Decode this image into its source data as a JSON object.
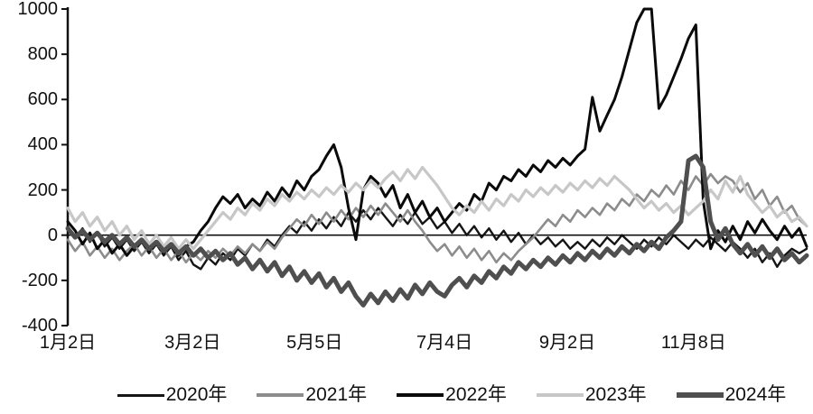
{
  "chart_data": {
    "type": "line",
    "title": "",
    "xlabel": "",
    "ylabel": "",
    "ylim": [
      -400,
      1000
    ],
    "grid": false,
    "zero_line": true,
    "legend_position": "bottom",
    "yticks": [
      "1000",
      "800",
      "600",
      "400",
      "200",
      "0",
      "-200",
      "-400"
    ],
    "ytick_values": [
      1000,
      800,
      600,
      400,
      200,
      0,
      -200,
      -400
    ],
    "xticklabels": [
      {
        "label": "1月2日",
        "pos": 0.0
      },
      {
        "label": "3月2日",
        "pos": 0.169
      },
      {
        "label": "5月5日",
        "pos": 0.334
      },
      {
        "label": "7月4日",
        "pos": 0.51
      },
      {
        "label": "9月2日",
        "pos": 0.676
      },
      {
        "label": "11月8日",
        "pos": 0.847
      }
    ],
    "axis_color": "#111111",
    "series": [
      {
        "name": "2020年",
        "color": "#151515",
        "width": 2.4,
        "values": [
          40,
          -10,
          30,
          -30,
          10,
          -50,
          -10,
          -60,
          -20,
          -70,
          -30,
          -80,
          -40,
          -90,
          -50,
          -110,
          -70,
          -130,
          -150,
          -100,
          -130,
          -80,
          -110,
          -60,
          -90,
          -40,
          -70,
          -20,
          -50,
          0,
          40,
          10,
          60,
          20,
          70,
          30,
          80,
          40,
          100,
          60,
          110,
          70,
          120,
          80,
          40,
          90,
          50,
          100,
          50,
          80,
          30,
          60,
          10,
          50,
          0,
          40,
          -10,
          30,
          -20,
          20,
          -30,
          10,
          -40,
          0,
          -40,
          -10,
          -50,
          -20,
          -60,
          -30,
          -60,
          -20,
          -50,
          -10,
          -40,
          0,
          -30,
          -60,
          -20,
          -50,
          -10,
          -40,
          0,
          -30,
          -60,
          -20,
          -50,
          -10,
          -40,
          -70,
          -30,
          -60,
          -100,
          -60,
          -120,
          -80,
          -140,
          -90,
          -60,
          -80,
          -60
        ]
      },
      {
        "name": "2021年",
        "color": "#8c8c8c",
        "width": 2.6,
        "values": [
          -20,
          -70,
          -30,
          -90,
          -50,
          -100,
          -60,
          -110,
          -70,
          -40,
          -90,
          -50,
          -100,
          -60,
          -110,
          -70,
          -120,
          -80,
          -110,
          -70,
          -100,
          -60,
          -90,
          -50,
          -80,
          -40,
          -70,
          -30,
          -60,
          -10,
          30,
          70,
          40,
          90,
          50,
          100,
          60,
          110,
          70,
          120,
          80,
          130,
          90,
          140,
          100,
          60,
          110,
          60,
          20,
          -30,
          -70,
          -40,
          -90,
          -50,
          -100,
          -60,
          -110,
          -70,
          -120,
          -80,
          -110,
          -70,
          -40,
          -10,
          30,
          70,
          40,
          90,
          60,
          110,
          80,
          120,
          90,
          140,
          110,
          160,
          130,
          180,
          150,
          200,
          170,
          220,
          180,
          240,
          200,
          260,
          220,
          270,
          230,
          260,
          240,
          190,
          230,
          160,
          200,
          130,
          170,
          100,
          130,
          70,
          40
        ]
      },
      {
        "name": "2022年",
        "color": "#0a0a0a",
        "width": 3,
        "values": [
          60,
          20,
          -40,
          10,
          -60,
          -20,
          -80,
          -40,
          -90,
          -50,
          -20,
          -70,
          -30,
          -80,
          -40,
          -90,
          -50,
          -30,
          20,
          60,
          120,
          170,
          140,
          180,
          120,
          160,
          130,
          190,
          150,
          210,
          170,
          240,
          200,
          260,
          290,
          350,
          400,
          300,
          120,
          -20,
          200,
          260,
          230,
          170,
          220,
          120,
          180,
          100,
          150,
          80,
          120,
          60,
          100,
          140,
          110,
          180,
          150,
          230,
          200,
          260,
          240,
          290,
          260,
          310,
          280,
          330,
          300,
          340,
          310,
          350,
          380,
          610,
          460,
          530,
          600,
          700,
          820,
          940,
          1000,
          1000,
          560,
          620,
          700,
          780,
          870,
          930,
          150,
          -60,
          20,
          -30,
          40,
          -20,
          60,
          10,
          70,
          20,
          -20,
          40,
          -10,
          30,
          -50
        ]
      },
      {
        "name": "2023年",
        "color": "#c7c7c7",
        "width": 3.2,
        "values": [
          120,
          60,
          100,
          40,
          80,
          20,
          60,
          0,
          40,
          -20,
          20,
          -40,
          0,
          -50,
          -10,
          -60,
          -20,
          -60,
          -20,
          20,
          60,
          100,
          70,
          120,
          90,
          140,
          110,
          160,
          130,
          180,
          150,
          190,
          160,
          200,
          170,
          210,
          180,
          220,
          190,
          230,
          200,
          240,
          210,
          250,
          280,
          240,
          290,
          250,
          300,
          260,
          220,
          170,
          120,
          90,
          130,
          100,
          150,
          110,
          160,
          130,
          180,
          150,
          200,
          170,
          210,
          180,
          220,
          190,
          230,
          200,
          240,
          210,
          250,
          220,
          260,
          230,
          200,
          160,
          120,
          150,
          110,
          140,
          100,
          130,
          90,
          120,
          150,
          200,
          160,
          240,
          190,
          260,
          180,
          140,
          100,
          130,
          80,
          110,
          60,
          80,
          40
        ]
      },
      {
        "name": "2024年",
        "color": "#4f4f4f",
        "width": 5,
        "values": [
          30,
          -10,
          20,
          -20,
          10,
          -30,
          0,
          -40,
          -10,
          -50,
          -20,
          -60,
          -30,
          -70,
          -40,
          -80,
          -50,
          -90,
          -60,
          -100,
          -70,
          -110,
          -80,
          -130,
          -100,
          -150,
          -110,
          -160,
          -120,
          -180,
          -140,
          -200,
          -160,
          -210,
          -170,
          -230,
          -190,
          -250,
          -210,
          -270,
          -310,
          -260,
          -300,
          -250,
          -290,
          -240,
          -280,
          -220,
          -260,
          -210,
          -250,
          -270,
          -220,
          -190,
          -230,
          -180,
          -210,
          -160,
          -190,
          -140,
          -170,
          -120,
          -150,
          -110,
          -140,
          -100,
          -130,
          -90,
          -120,
          -80,
          -110,
          -70,
          -100,
          -60,
          -90,
          -50,
          -80,
          -40,
          -70,
          -30,
          -60,
          -10,
          20,
          60,
          330,
          350,
          300,
          60,
          -20,
          30,
          -40,
          -80,
          -40,
          -90,
          -50,
          -100,
          -60,
          -110,
          -80,
          -120,
          -90
        ]
      }
    ]
  }
}
